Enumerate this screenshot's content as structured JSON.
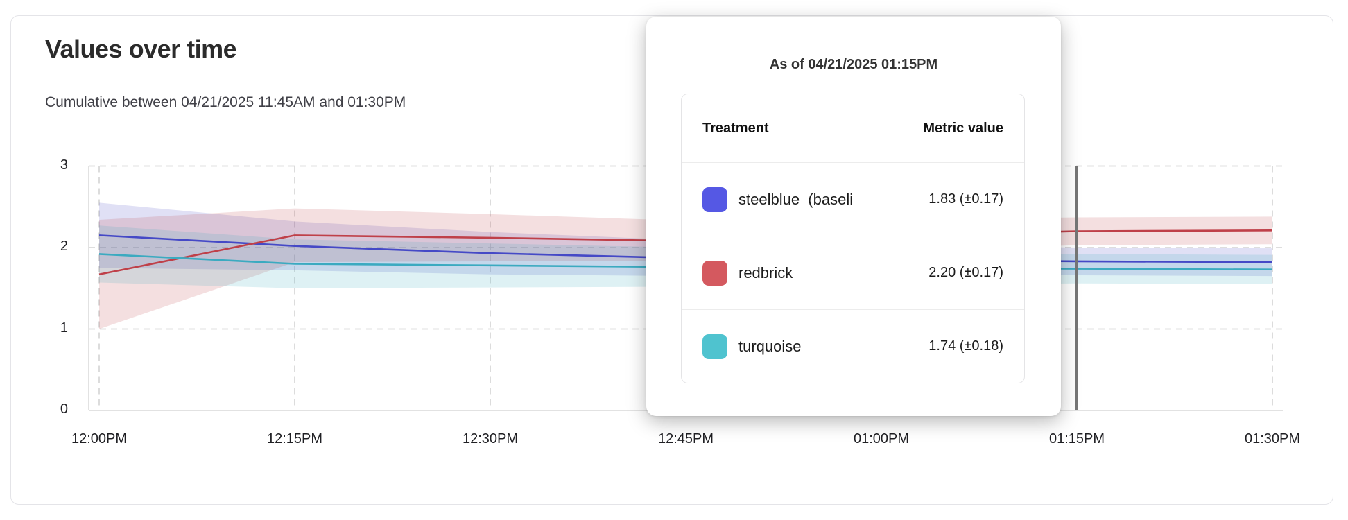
{
  "header": {
    "title": "Values over time",
    "subtitle": "Cumulative between 04/21/2025 11:45AM and 01:30PM"
  },
  "tooltip": {
    "title": "As of 04/21/2025 01:15PM",
    "columns": [
      "Treatment",
      "Metric value"
    ],
    "rows": [
      {
        "name": "steelblue  (baseli",
        "value": "1.83 (±0.17)",
        "swatch": "#5558e4"
      },
      {
        "name": "redbrick",
        "value": "2.20 (±0.17)",
        "swatch": "#d4595f"
      },
      {
        "name": "turquoise",
        "value": "1.74 (±0.18)",
        "swatch": "#4fc3cf"
      }
    ]
  },
  "chart_data": {
    "type": "line",
    "x": [
      "12:00PM",
      "12:15PM",
      "12:30PM",
      "12:45PM",
      "01:00PM",
      "01:15PM",
      "01:30PM"
    ],
    "yticks": [
      0,
      1,
      2,
      3
    ],
    "ylim": [
      0,
      3
    ],
    "grid": true,
    "legend_position": "tooltip",
    "hover_x": "01:15PM",
    "hover_line_color": "#767676",
    "grid_color": "#d9d9d9",
    "axis_color": "#e2e2e2",
    "series": [
      {
        "name": "steelblue",
        "color": "#4549c6",
        "values": [
          2.15,
          2.02,
          1.93,
          1.87,
          1.85,
          1.83,
          1.82
        ],
        "ci": [
          0.4,
          0.3,
          0.26,
          0.22,
          0.19,
          0.17,
          0.17
        ]
      },
      {
        "name": "redbrick",
        "color": "#bf4049",
        "values": [
          1.67,
          2.15,
          2.12,
          2.08,
          2.14,
          2.2,
          2.21
        ],
        "ci": [
          0.67,
          0.33,
          0.29,
          0.25,
          0.2,
          0.17,
          0.17
        ]
      },
      {
        "name": "turquoise",
        "color": "#3baac0",
        "values": [
          1.92,
          1.8,
          1.78,
          1.76,
          1.75,
          1.74,
          1.73
        ],
        "ci": [
          0.35,
          0.3,
          0.27,
          0.24,
          0.21,
          0.18,
          0.18
        ]
      }
    ]
  }
}
